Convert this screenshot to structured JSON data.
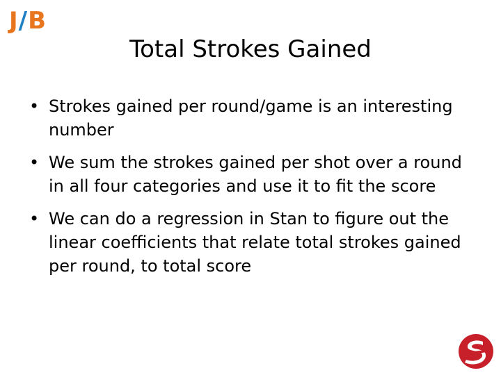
{
  "logo": {
    "j": "J",
    "slash": "/",
    "b": "B",
    "colors": {
      "orange": "#e8761e",
      "blue": "#1f7fc4"
    }
  },
  "slide": {
    "title": "Total Strokes Gained",
    "bullets": [
      "Strokes gained per round/game is an interesting number",
      "We sum the strokes gained per shot over a round in all four categories and use it to fit the score",
      "We can do a regression in Stan to figure out the linear coefficients that relate total strokes gained per round, to total score"
    ]
  },
  "corner_logo": {
    "icon": "stan-logo-icon",
    "color": "#c8202a"
  }
}
